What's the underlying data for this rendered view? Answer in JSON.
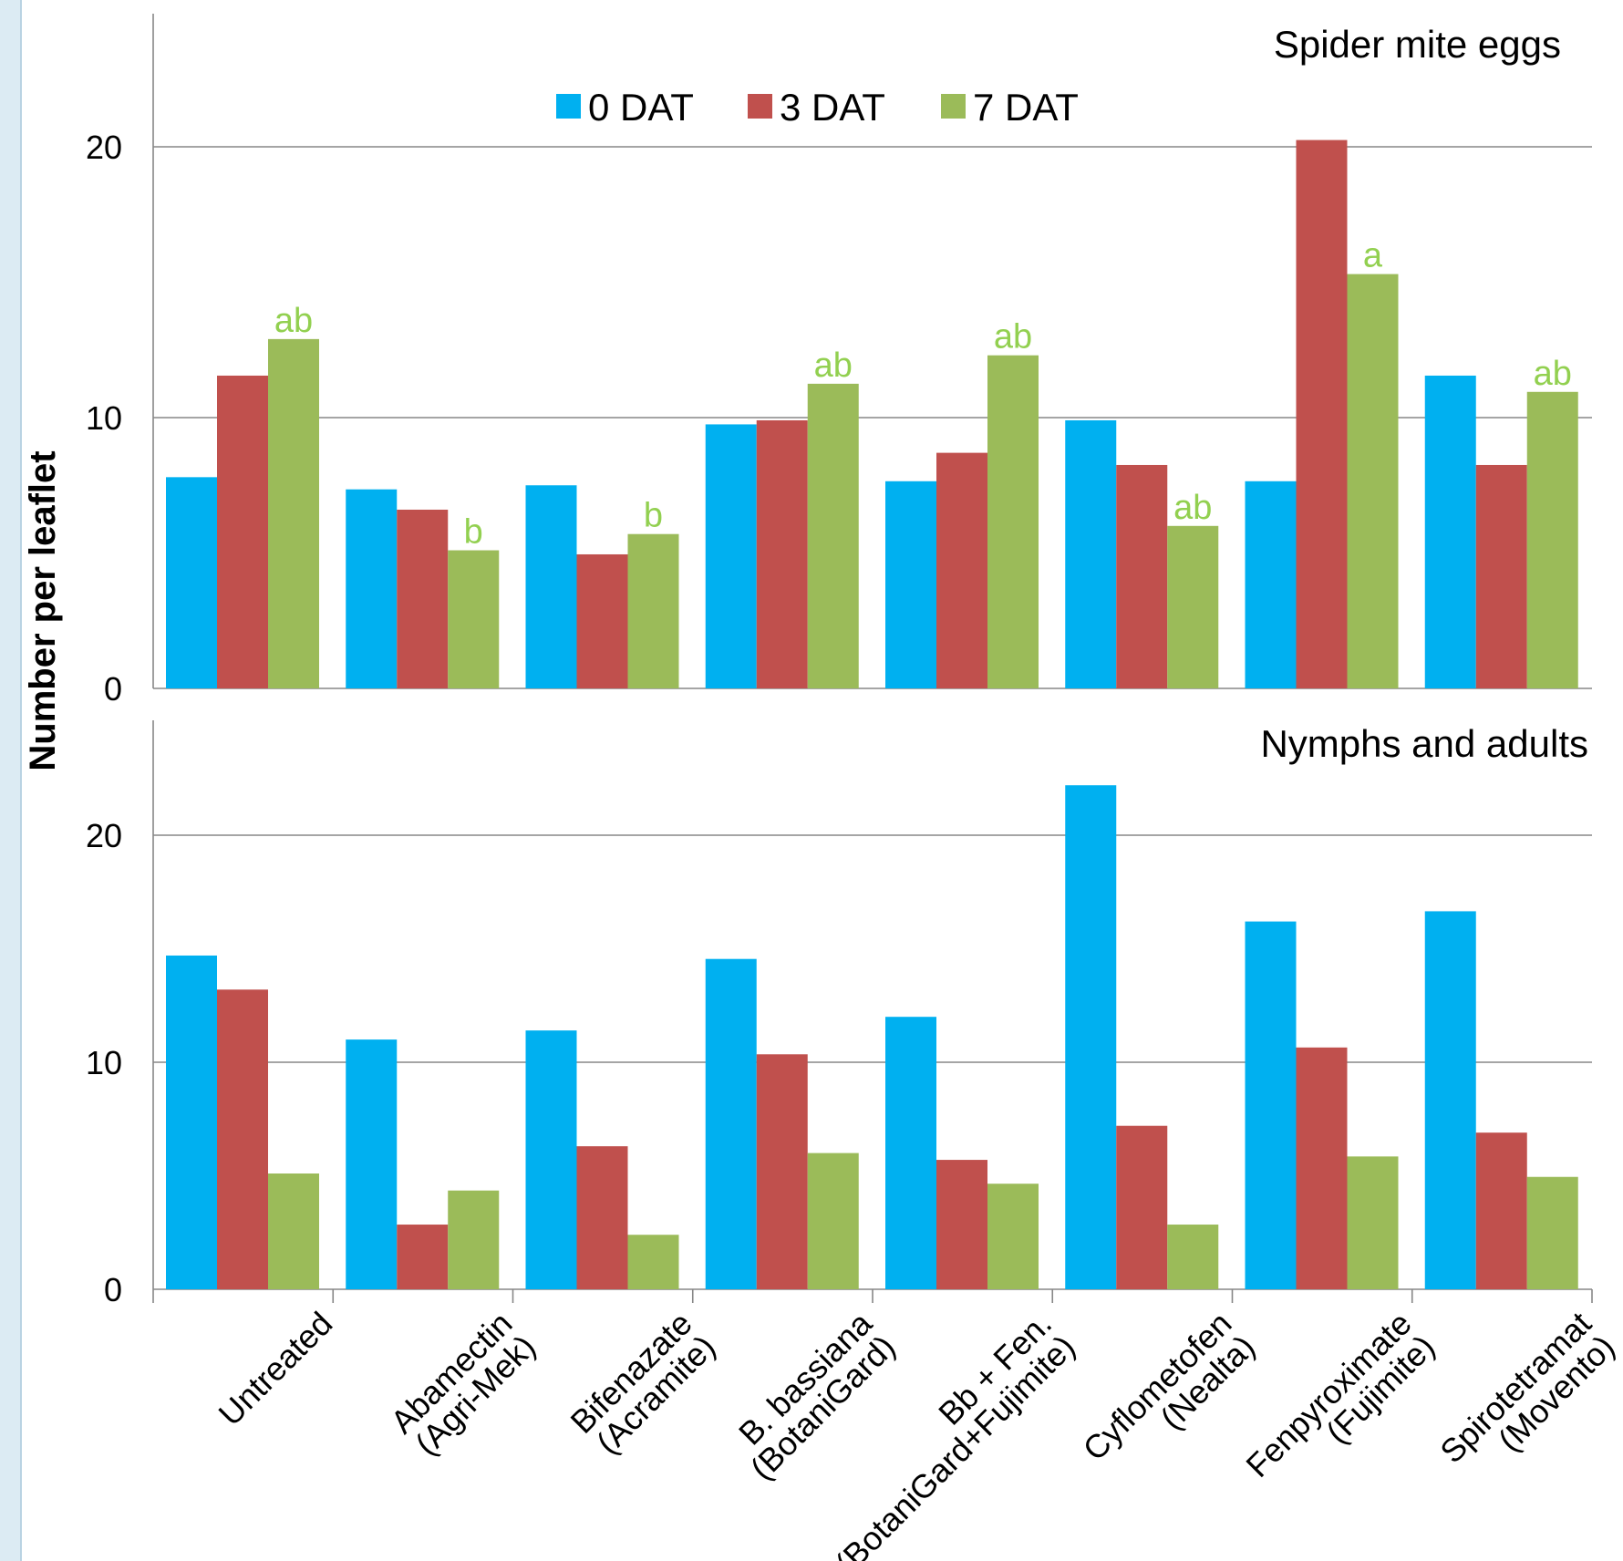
{
  "chart_data": {
    "type": "bar",
    "ylabel": "Number per leaflet",
    "categories": [
      {
        "line1": "Untreated",
        "line2": ""
      },
      {
        "line1": "Abamectin",
        "line2": "(Agri-Mek)"
      },
      {
        "line1": "Bifenazate",
        "line2": "(Acramite)"
      },
      {
        "line1": "B. bassiana",
        "line2": "(BotaniGard)"
      },
      {
        "line1": "Bb + Fen.",
        "line2": "(BotaniGard+Fujimite)"
      },
      {
        "line1": "Cyflometofen",
        "line2": "(Nealta)"
      },
      {
        "line1": "Fenpyroximate",
        "line2": "(Fujimite)"
      },
      {
        "line1": "Spirotetramat",
        "line2": "(Movento)"
      }
    ],
    "series_colors": [
      "#00b0f0",
      "#c0504d",
      "#9bbb59"
    ],
    "significance_color": "#92d050",
    "legend": {
      "placement": "top",
      "entries": [
        "0 DAT",
        "3 DAT",
        "7 DAT"
      ]
    },
    "panels": [
      {
        "title": "Spider mite eggs",
        "ylim": [
          0,
          25
        ],
        "yticks": [
          "0",
          "10",
          "20"
        ],
        "series": [
          {
            "name": "0 DAT",
            "values": [
              7.8,
              7.35,
              7.5,
              9.75,
              7.65,
              9.9,
              7.65,
              11.55
            ]
          },
          {
            "name": "3 DAT",
            "values": [
              11.55,
              6.6,
              4.95,
              9.9,
              8.7,
              8.25,
              20.25,
              8.25
            ]
          },
          {
            "name": "7 DAT",
            "values": [
              12.9,
              5.1,
              5.7,
              11.25,
              12.3,
              6.0,
              15.3,
              10.95
            ]
          }
        ],
        "significance": [
          "ab",
          "b",
          "b",
          "ab",
          "ab",
          "ab",
          "a",
          "ab"
        ]
      },
      {
        "title": "Nymphs and adults",
        "ylim": [
          0,
          25
        ],
        "yticks": [
          "0",
          "10",
          "20"
        ],
        "series": [
          {
            "name": "0 DAT",
            "values": [
              14.7,
              11.0,
              11.4,
              14.55,
              12.0,
              22.2,
              16.2,
              16.65
            ]
          },
          {
            "name": "3 DAT",
            "values": [
              13.2,
              2.85,
              6.3,
              10.35,
              5.7,
              7.2,
              10.65,
              6.9
            ]
          },
          {
            "name": "7 DAT",
            "values": [
              5.1,
              4.35,
              2.4,
              6.0,
              4.65,
              2.85,
              5.85,
              4.95
            ]
          }
        ]
      }
    ]
  }
}
